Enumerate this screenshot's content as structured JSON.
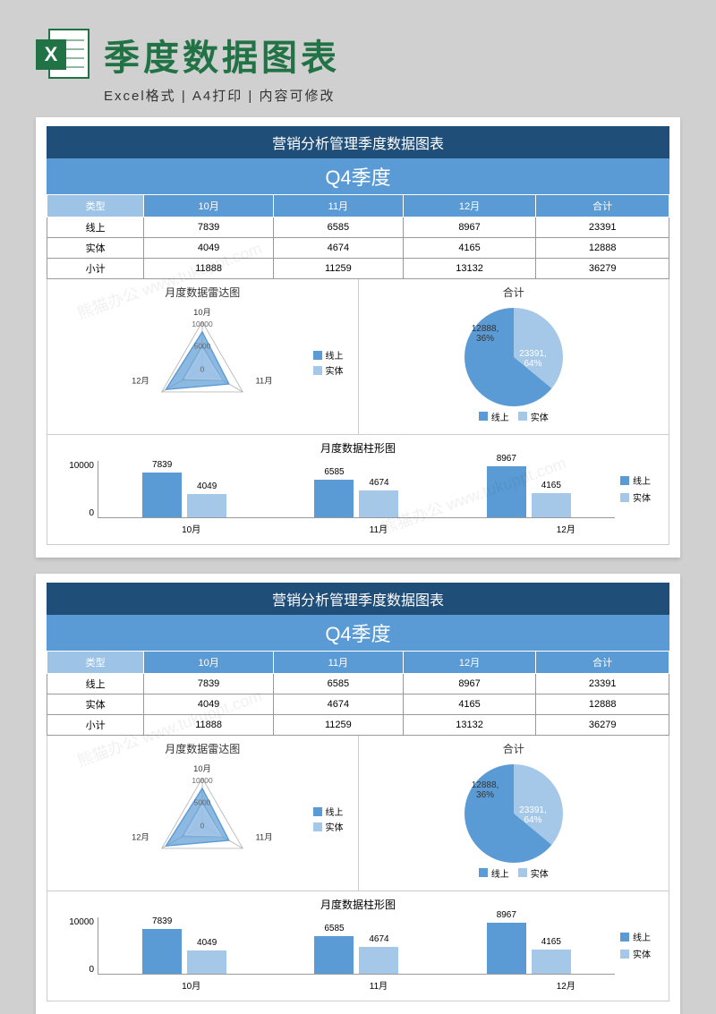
{
  "header": {
    "big_title": "季度数据图表",
    "subtitle": "Excel格式 | A4打印 | 内容可修改",
    "icon_letter": "X",
    "icon_color": "#217346"
  },
  "colors": {
    "title_bar": "#1f4e79",
    "band": "#5b9bd5",
    "th_first": "#9dc3e6",
    "series1": "#5b9bd5",
    "series2": "#a5c8e8",
    "grid": "#cccccc"
  },
  "sheet": {
    "title": "营销分析管理季度数据图表",
    "quarter": "Q4季度",
    "table": {
      "columns": [
        "类型",
        "10月",
        "11月",
        "12月",
        "合计"
      ],
      "rows": [
        [
          "线上",
          "7839",
          "6585",
          "8967",
          "23391"
        ],
        [
          "实体",
          "4049",
          "4674",
          "4165",
          "12888"
        ],
        [
          "小计",
          "11888",
          "11259",
          "13132",
          "36279"
        ]
      ]
    },
    "radar": {
      "title": "月度数据雷达图",
      "axes": [
        "10月",
        "11月",
        "12月"
      ],
      "rings": [
        "10000",
        "5000",
        "0"
      ],
      "series": [
        {
          "name": "线上",
          "color": "#5b9bd5",
          "values": [
            7839,
            6585,
            8967
          ]
        },
        {
          "name": "实体",
          "color": "#a5c8e8",
          "values": [
            4049,
            4674,
            4165
          ]
        }
      ],
      "max": 10000
    },
    "pie": {
      "title": "合计",
      "slices": [
        {
          "name": "线上",
          "value": 23391,
          "pct": 64,
          "label": "23391,\n64%",
          "color": "#5b9bd5"
        },
        {
          "name": "实体",
          "value": 12888,
          "pct": 36,
          "label": "12888,\n36%",
          "color": "#a5c8e8"
        }
      ]
    },
    "bars": {
      "title": "月度数据柱形图",
      "categories": [
        "10月",
        "11月",
        "12月"
      ],
      "ymax": 10000,
      "yticks": [
        "10000",
        "0"
      ],
      "series": [
        {
          "name": "线上",
          "color": "#5b9bd5",
          "values": [
            7839,
            6585,
            8967
          ]
        },
        {
          "name": "实体",
          "color": "#a5c8e8",
          "values": [
            4049,
            4674,
            4165
          ]
        }
      ]
    }
  },
  "watermark": "熊猫办公 www.tukuppt.com"
}
